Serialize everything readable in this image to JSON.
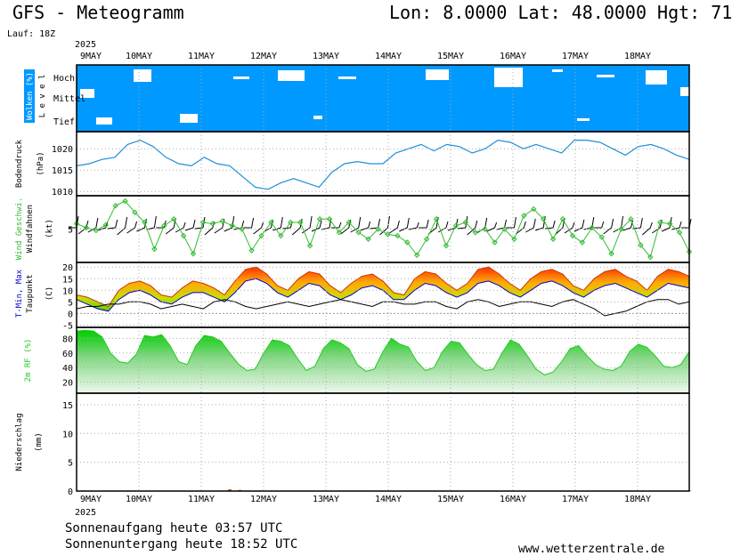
{
  "header": {
    "title": "GFS - Meteogramm",
    "location": "Lon: 8.0000 Lat: 48.0000 Hgt: 71",
    "run": "Lauf: 18Z"
  },
  "footer": {
    "sunrise": "Sonnenaufgang heute 03:57 UTC",
    "sunset": "Sonnenuntergang heute 18:52 UTC",
    "site": "www.wetterzentrale.de"
  },
  "colors": {
    "cloud": "#0099ff",
    "pressure": "#1e90d8",
    "wind": "#33bb33",
    "tmin": "#0000cc",
    "tmax": "#ee0000",
    "rh": "#22cc22",
    "precip": "#cc6600"
  },
  "chart_data": {
    "type": "line",
    "year": "2025",
    "days": [
      "9MAY",
      "10MAY",
      "11MAY",
      "12MAY",
      "13MAY",
      "14MAY",
      "15MAY",
      "16MAY",
      "17MAY",
      "18MAY"
    ],
    "panels": [
      {
        "id": "clouds",
        "type": "heatmap",
        "ylabel": "Wolken (%)",
        "ylabel2": "L e v e l",
        "levels": [
          "Hoch",
          "Mittel",
          "Tief"
        ]
      },
      {
        "id": "pressure",
        "ylabel": "Bodendruck",
        "ylabel2": "(hPa)",
        "yticks": [
          1010,
          1015,
          1020
        ],
        "ylim": [
          1009,
          1024
        ],
        "values": [
          1016,
          1016.5,
          1017.5,
          1018,
          1021,
          1022,
          1020.5,
          1018,
          1016.5,
          1016,
          1018,
          1016.5,
          1016,
          1013.5,
          1011,
          1010.5,
          1012,
          1013,
          1012,
          1011,
          1014.5,
          1016.5,
          1017,
          1016.5,
          1016.5,
          1019,
          1020,
          1021,
          1019.5,
          1021,
          1020.5,
          1019,
          1020,
          1022,
          1021.5,
          1020,
          1021,
          1020,
          1019,
          1022,
          1022,
          1021.5,
          1020,
          1018.5,
          1020.5,
          1021,
          1020,
          1018.5,
          1017.5
        ]
      },
      {
        "id": "wind",
        "ylabel": "Wind Geschwi.",
        "ylabel2": "Windfahnen",
        "ylabel3": "(kt)",
        "yticks": [
          5
        ],
        "ylim": [
          0,
          10
        ],
        "values": [
          5.8,
          5.2,
          4.8,
          5.6,
          8.5,
          9.2,
          7.5,
          6,
          2,
          5.5,
          6.5,
          4,
          1.3,
          6,
          5.8,
          6.2,
          5.5,
          5,
          1.8,
          4,
          6,
          4,
          6,
          6,
          2.5,
          6.5,
          6.5,
          4.5,
          6,
          4.5,
          3.5,
          5,
          4.2,
          4,
          3,
          1.1,
          3.5,
          6.5,
          2.5,
          5.5,
          6,
          4.5,
          5,
          3,
          5,
          3.5,
          7,
          8,
          6.5,
          3.5,
          6.5,
          4,
          3,
          5.2,
          3.8,
          1.3,
          5,
          6.5,
          2.6,
          0.8,
          6,
          5.8,
          4.5,
          1.6
        ]
      },
      {
        "id": "temperature",
        "ylabel": "T-Min, Max",
        "ylabel2": "Taupunkt",
        "ylabel3": "(C)",
        "yticks": [
          -5,
          0,
          5,
          10,
          15,
          20
        ],
        "ylim": [
          -6,
          22
        ],
        "tmax": [
          8,
          7,
          5,
          3,
          10,
          13,
          14,
          12,
          8,
          7,
          11,
          14,
          13,
          11,
          8,
          14,
          19,
          20,
          17,
          12,
          10,
          15,
          18,
          17,
          12,
          9,
          13,
          16,
          17,
          14,
          9,
          8,
          15,
          18,
          17,
          13,
          10,
          13,
          19,
          20,
          17,
          13,
          10,
          15,
          18,
          19,
          17,
          12,
          10,
          15,
          18,
          19,
          16,
          14,
          10,
          16,
          19,
          18,
          16
        ],
        "tmin": [
          6,
          4,
          2,
          1,
          6,
          9,
          10,
          8,
          5,
          4,
          7,
          9,
          9,
          7,
          5,
          9,
          14,
          15,
          13,
          9,
          7,
          10,
          13,
          12,
          8,
          6,
          8,
          11,
          12,
          10,
          6,
          6,
          10,
          13,
          12,
          9,
          7,
          9,
          13,
          14,
          12,
          9,
          7,
          10,
          13,
          14,
          12,
          9,
          7,
          10,
          12,
          13,
          11,
          9,
          7,
          10,
          13,
          12,
          11
        ],
        "dewpoint": [
          2,
          3,
          3,
          4,
          4,
          5,
          5,
          4,
          2,
          3,
          4,
          3,
          2,
          5,
          6,
          5,
          3,
          2,
          3,
          4,
          5,
          4,
          3,
          4,
          5,
          6,
          5,
          4,
          3,
          5,
          5,
          4,
          4,
          5,
          5,
          3,
          2,
          5,
          6,
          5,
          3,
          4,
          5,
          5,
          4,
          3,
          5,
          6,
          4,
          2,
          -1,
          0,
          1,
          3,
          5,
          6,
          6,
          4,
          5
        ]
      },
      {
        "id": "rh",
        "ylabel": "2m RF (%)",
        "yticks": [
          20,
          40,
          60,
          80
        ],
        "ylim": [
          5,
          95
        ],
        "values": [
          90,
          91,
          90,
          82,
          60,
          48,
          46,
          58,
          84,
          82,
          85,
          70,
          48,
          44,
          70,
          84,
          82,
          76,
          60,
          45,
          36,
          38,
          60,
          78,
          76,
          70,
          52,
          36,
          42,
          66,
          78,
          74,
          66,
          44,
          35,
          38,
          62,
          80,
          72,
          68,
          48,
          36,
          40,
          62,
          76,
          74,
          58,
          44,
          36,
          38,
          60,
          78,
          72,
          56,
          38,
          30,
          34,
          48,
          66,
          70,
          56,
          44,
          38,
          36,
          42,
          62,
          72,
          68,
          56,
          42,
          40,
          44,
          62
        ]
      },
      {
        "id": "precip",
        "ylabel": "Niederschlag",
        "ylabel2": "(mm)",
        "yticks": [
          0,
          5,
          10,
          15
        ],
        "ylim": [
          0,
          17
        ],
        "values": [
          0,
          0,
          0,
          0,
          0,
          0,
          0,
          0,
          0,
          0,
          0,
          0,
          0,
          0,
          0,
          0.3,
          0.2,
          0,
          0,
          0,
          0,
          0,
          0,
          0,
          0,
          0,
          0,
          0,
          0,
          0,
          0,
          0,
          0,
          0,
          0,
          0,
          0,
          0,
          0,
          0,
          0,
          0,
          0,
          0,
          0,
          0,
          0,
          0,
          0,
          0,
          0,
          0,
          0,
          0,
          0,
          0,
          0,
          0,
          0,
          0,
          0.1
        ]
      }
    ]
  }
}
